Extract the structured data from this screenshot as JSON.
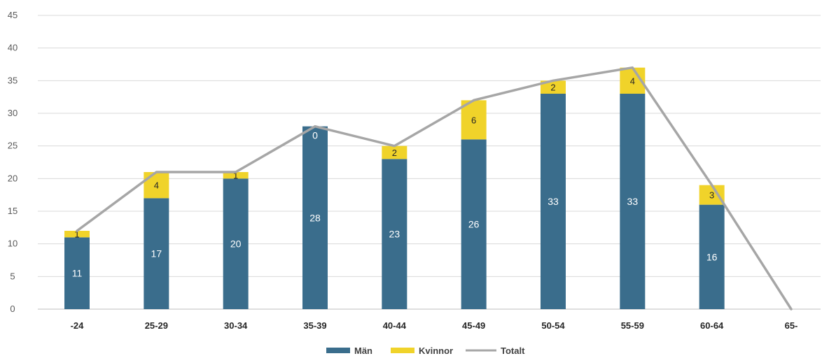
{
  "chart_data": {
    "type": "bar",
    "stacked": true,
    "categories": [
      "-24",
      "25-29",
      "30-34",
      "35-39",
      "40-44",
      "45-49",
      "50-54",
      "55-59",
      "60-64",
      "65-"
    ],
    "series": [
      {
        "name": "Män",
        "type": "bar",
        "color": "#3a6d8c",
        "values": [
          11,
          17,
          20,
          28,
          23,
          26,
          33,
          33,
          16,
          null
        ]
      },
      {
        "name": "Kvinnor",
        "type": "bar",
        "color": "#f0d32a",
        "values": [
          1,
          4,
          1,
          0,
          2,
          6,
          2,
          4,
          3,
          null
        ]
      },
      {
        "name": "Totalt",
        "type": "line",
        "color": "#a6a6a6",
        "values": [
          12,
          21,
          21,
          28,
          25,
          32,
          35,
          37,
          19,
          0
        ]
      }
    ],
    "ylim": [
      0,
      45
    ],
    "yticks": [
      "0",
      "5",
      "10",
      "15",
      "20",
      "25",
      "30",
      "35",
      "40",
      "45"
    ],
    "title": "",
    "xlabel": "",
    "ylabel": "",
    "grid": true,
    "legend": "bottom"
  }
}
